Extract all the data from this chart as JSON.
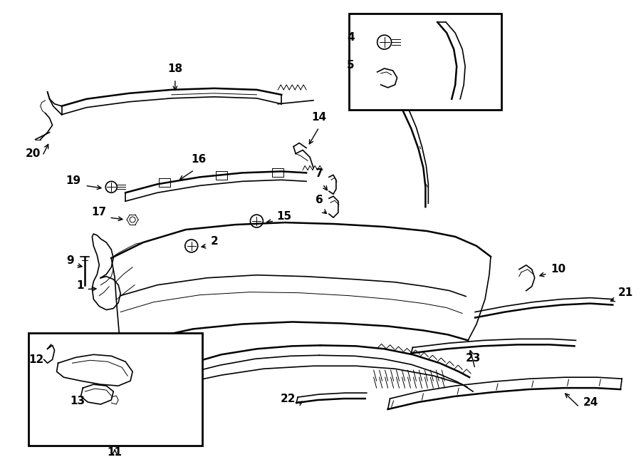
{
  "bg_color": "#ffffff",
  "line_color": "#000000",
  "figsize": [
    9.0,
    6.62
  ],
  "dpi": 100,
  "label_fontsize": 11,
  "small_fontsize": 9
}
